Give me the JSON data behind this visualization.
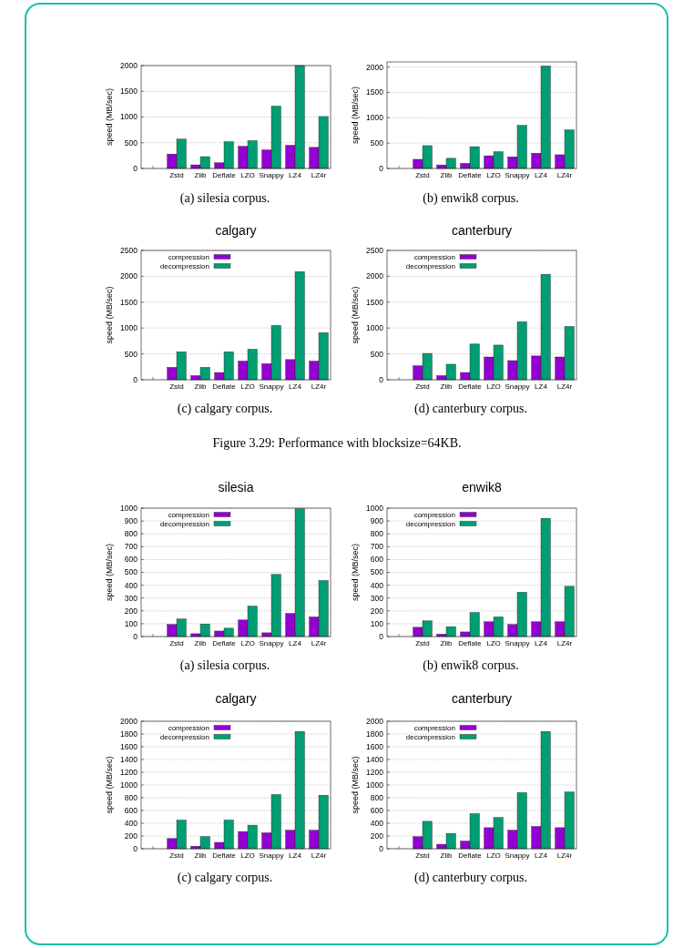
{
  "chart_data": [
    {
      "type": "bar",
      "categories": [
        null,
        "Zstd",
        "Zlib",
        "Deflate",
        "LZO",
        "Snappy",
        "LZ4",
        "LZ4r"
      ],
      "ylabel": "speed (MB/sec)",
      "ylim": [
        0,
        2000
      ],
      "yticks": [
        0,
        500,
        1000,
        1500,
        2000
      ],
      "grid": "y",
      "legend": false,
      "annotations": [
        "(a) silesia corpus."
      ],
      "series": [
        {
          "color": "#9400d3",
          "values": [
            null,
            280,
            70,
            110,
            430,
            360,
            450,
            410
          ]
        },
        {
          "color": "#009e73",
          "values": [
            null,
            570,
            230,
            520,
            540,
            1210,
            2000,
            1010
          ]
        }
      ]
    },
    {
      "type": "bar",
      "categories": [
        null,
        "Zstd",
        "Zlib",
        "Deflate",
        "LZO",
        "Snappy",
        "LZ4",
        "LZ4r"
      ],
      "ylabel": "speed (MB/sec)",
      "ylim": [
        0,
        2100
      ],
      "yticks": [
        0,
        500,
        1000,
        1500,
        2000
      ],
      "grid": "y",
      "legend": false,
      "annotations": [
        "(b) enwik8 corpus."
      ],
      "series": [
        {
          "color": "#9400d3",
          "values": [
            null,
            180,
            70,
            100,
            250,
            230,
            300,
            270
          ]
        },
        {
          "color": "#009e73",
          "values": [
            null,
            450,
            200,
            430,
            330,
            850,
            2020,
            760
          ]
        }
      ]
    },
    {
      "type": "bar",
      "title": "calgary",
      "categories": [
        null,
        "Zstd",
        "Zlib",
        "Deflate",
        "LZO",
        "Snappy",
        "LZ4",
        "LZ4r"
      ],
      "ylabel": "speed (MB/sec)",
      "ylim": [
        0,
        2500
      ],
      "yticks": [
        0,
        500,
        1000,
        1500,
        2000,
        2500
      ],
      "grid": "y",
      "legend": "top left",
      "annotations": [
        "(c) calgary corpus."
      ],
      "series": [
        {
          "name": "compression",
          "color": "#9400d3",
          "values": [
            null,
            240,
            80,
            140,
            360,
            310,
            390,
            360
          ]
        },
        {
          "name": "decompression",
          "color": "#009e73",
          "values": [
            null,
            540,
            240,
            540,
            590,
            1050,
            2090,
            910
          ]
        }
      ]
    },
    {
      "type": "bar",
      "title": "canterbury",
      "categories": [
        null,
        "Zstd",
        "Zlib",
        "Deflate",
        "LZO",
        "Snappy",
        "LZ4",
        "LZ4r"
      ],
      "ylabel": "speed (MB/sec)",
      "ylim": [
        0,
        2500
      ],
      "yticks": [
        0,
        500,
        1000,
        1500,
        2000,
        2500
      ],
      "grid": "y",
      "legend": "top left",
      "annotations": [
        "(d) canterbury corpus.",
        "Figure 3.29: Performance with blocksize=64KB."
      ],
      "series": [
        {
          "name": "compression",
          "color": "#9400d3",
          "values": [
            null,
            270,
            80,
            140,
            440,
            370,
            460,
            440
          ]
        },
        {
          "name": "decompression",
          "color": "#009e73",
          "values": [
            null,
            510,
            300,
            690,
            670,
            1120,
            2040,
            1030
          ]
        }
      ]
    },
    {
      "type": "bar",
      "title": "silesia",
      "categories": [
        null,
        "Zstd",
        "Zlib",
        "Deflate",
        "LZO",
        "Snappy",
        "LZ4",
        "LZ4r"
      ],
      "ylabel": "speed (MB/sec)",
      "ylim": [
        0,
        1000
      ],
      "yticks": [
        0,
        100,
        200,
        300,
        400,
        500,
        600,
        700,
        800,
        900,
        1000
      ],
      "grid": "y",
      "legend": "top left",
      "annotations": [
        "(a) silesia corpus."
      ],
      "series": [
        {
          "name": "compression",
          "color": "#9400d3",
          "values": [
            null,
            94,
            22,
            43,
            129,
            29,
            180,
            153
          ]
        },
        {
          "name": "decompression",
          "color": "#009e73",
          "values": [
            null,
            137,
            98,
            65,
            237,
            484,
            995,
            436
          ]
        }
      ]
    },
    {
      "type": "bar",
      "title": "enwik8",
      "categories": [
        null,
        "Zstd",
        "Zlib",
        "Deflate",
        "LZO",
        "Snappy",
        "LZ4",
        "LZ4r"
      ],
      "ylabel": "speed (MB/sec)",
      "ylim": [
        0,
        1000
      ],
      "yticks": [
        0,
        100,
        200,
        300,
        400,
        500,
        600,
        700,
        800,
        900,
        1000
      ],
      "grid": "y",
      "legend": "top left",
      "annotations": [
        "(b) enwik8 corpus."
      ],
      "series": [
        {
          "name": "compression",
          "color": "#9400d3",
          "values": [
            null,
            72,
            19,
            36,
            115,
            94,
            115,
            115
          ]
        },
        {
          "name": "decompression",
          "color": "#009e73",
          "values": [
            null,
            122,
            77,
            187,
            153,
            345,
            921,
            391
          ]
        }
      ]
    },
    {
      "type": "bar",
      "title": "calgary",
      "categories": [
        null,
        "Zstd",
        "Zlib",
        "Deflate",
        "LZO",
        "Snappy",
        "LZ4",
        "LZ4r"
      ],
      "ylabel": "speed (MB/sec)",
      "ylim": [
        0,
        2000
      ],
      "yticks": [
        0,
        200,
        400,
        600,
        800,
        1000,
        1200,
        1400,
        1600,
        1800,
        2000
      ],
      "grid": "y",
      "legend": "top left",
      "annotations": [
        "(c) calgary corpus."
      ],
      "series": [
        {
          "name": "compression",
          "color": "#9400d3",
          "values": [
            null,
            160,
            40,
            100,
            270,
            250,
            290,
            290
          ]
        },
        {
          "name": "decompression",
          "color": "#009e73",
          "values": [
            null,
            450,
            190,
            450,
            370,
            850,
            1840,
            840
          ]
        }
      ]
    },
    {
      "type": "bar",
      "title": "canterbury",
      "categories": [
        null,
        "Zstd",
        "Zlib",
        "Deflate",
        "LZO",
        "Snappy",
        "LZ4",
        "LZ4r"
      ],
      "ylabel": "speed (MB/sec)",
      "ylim": [
        0,
        2000
      ],
      "yticks": [
        0,
        200,
        400,
        600,
        800,
        1000,
        1200,
        1400,
        1600,
        1800,
        2000
      ],
      "grid": "y",
      "legend": "top left",
      "annotations": [
        "(d) canterbury corpus."
      ],
      "series": [
        {
          "name": "compression",
          "color": "#9400d3",
          "values": [
            null,
            190,
            70,
            120,
            330,
            290,
            350,
            330
          ]
        },
        {
          "name": "decompression",
          "color": "#009e73",
          "values": [
            null,
            430,
            240,
            550,
            490,
            880,
            1840,
            890
          ]
        }
      ]
    }
  ]
}
